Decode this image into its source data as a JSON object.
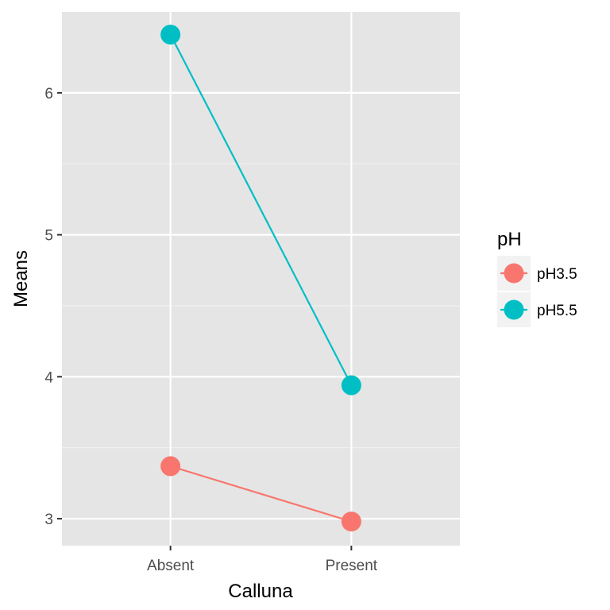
{
  "chart_data": {
    "type": "line",
    "xlabel": "Calluna",
    "ylabel": "Means",
    "categories": [
      "Absent",
      "Present"
    ],
    "y_ticks": [
      3,
      4,
      5,
      6
    ],
    "ylim": [
      2.81,
      6.57
    ],
    "grid": true,
    "legend": {
      "title": "pH",
      "placement": "right"
    },
    "series": [
      {
        "name": "pH3.5",
        "color": "#F8766D",
        "values": [
          3.37,
          2.98
        ]
      },
      {
        "name": "pH5.5",
        "color": "#00BFC4",
        "values": [
          6.41,
          3.94
        ]
      }
    ]
  }
}
